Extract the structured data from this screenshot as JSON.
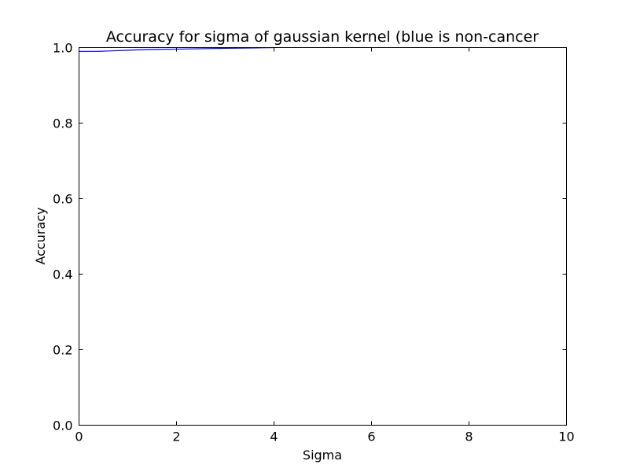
{
  "chart_data": {
    "type": "line",
    "title": "Accuracy for sigma of gaussian kernel (blue is non-cancer",
    "xlabel": "Sigma",
    "ylabel": "Accuracy",
    "xlim": [
      0,
      10
    ],
    "ylim": [
      0.0,
      1.0
    ],
    "xticks": [
      "0",
      "2",
      "4",
      "6",
      "8",
      "10"
    ],
    "yticks": [
      "0.0",
      "0.2",
      "0.4",
      "0.6",
      "0.8",
      "1.0"
    ],
    "grid": false,
    "series": [
      {
        "color": "#0000ff",
        "x": [
          0.0,
          0.2,
          0.4,
          0.6,
          0.8,
          1.0,
          1.2,
          1.5,
          2.0,
          2.5,
          3.0,
          3.5,
          4.0
        ],
        "y": [
          0.99,
          0.99,
          0.99,
          0.991,
          0.992,
          0.993,
          0.994,
          0.995,
          0.996,
          0.997,
          0.998,
          0.999,
          1.0
        ]
      }
    ]
  }
}
